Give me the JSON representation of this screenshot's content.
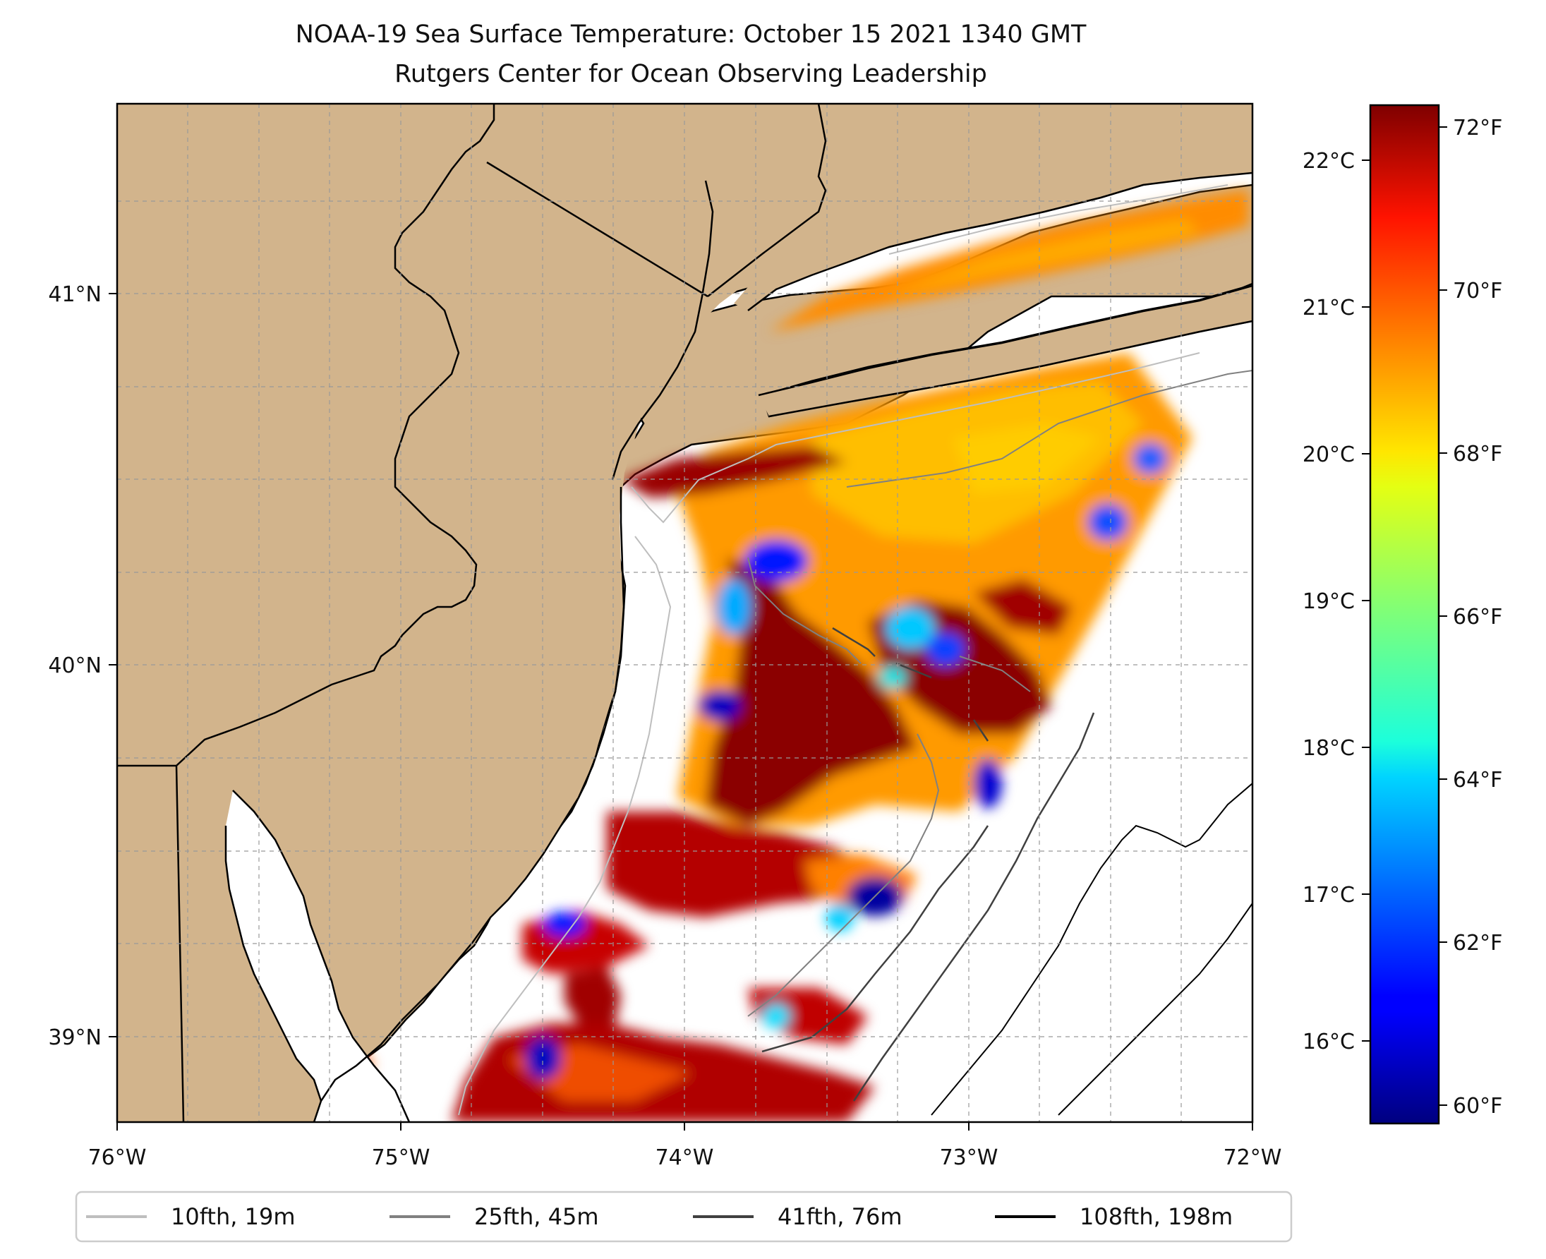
{
  "title_line1": "NOAA-19 Sea Surface Temperature: October 15 2021 1340 GMT",
  "title_line2": "Rutgers Center for Ocean Observing Leadership",
  "map": {
    "lon_range": [
      -76,
      -72
    ],
    "lat_range": [
      38.75,
      41.5
    ],
    "lon_ticks": [
      "76°W",
      "75°W",
      "74°W",
      "73°W",
      "72°W"
    ],
    "lat_ticks": [
      "41°N",
      "40°N",
      "39°N"
    ],
    "grid": "dashed gray",
    "land_color": "#D2B48C",
    "ocean_color": "#FFFFFF"
  },
  "colorbar": {
    "colormap": "jet",
    "min_F": 59.8,
    "max_F": 72.3,
    "f_ticks": [
      "72°F",
      "70°F",
      "68°F",
      "66°F",
      "64°F",
      "62°F",
      "60°F"
    ],
    "c_ticks": [
      "22°C",
      "21°C",
      "20°C",
      "19°C",
      "18°C",
      "17°C",
      "16°C"
    ]
  },
  "legend": {
    "placement": "bottom-center",
    "items": [
      {
        "label": "10fth, 19m",
        "color": "#BEBEBE"
      },
      {
        "label": "25fth, 45m",
        "color": "#808080"
      },
      {
        "label": "41fth, 76m",
        "color": "#404040"
      },
      {
        "label": "108fth, 198m",
        "color": "#000000"
      }
    ]
  }
}
